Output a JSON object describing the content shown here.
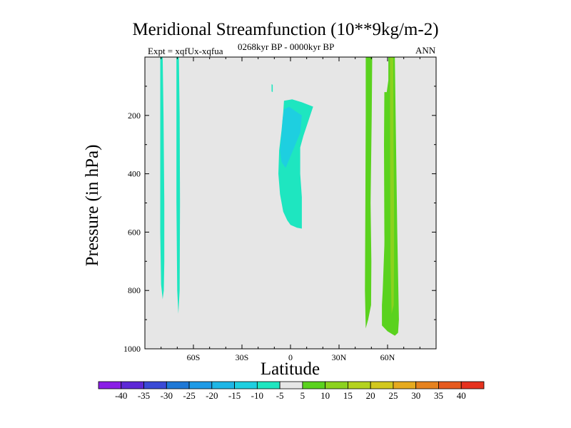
{
  "title": "Meridional Streamfunction (10**9kg/m-2)",
  "subtitle_left": "Expt = xqfUx-xqfua",
  "subtitle_center": "0268kyr BP - 0000kyr BP",
  "subtitle_right": "ANN",
  "chart_data": {
    "type": "heatmap",
    "title": "Meridional Streamfunction (10**9kg/m-2)",
    "xlabel": "Latitude",
    "ylabel": "Pressure (in hPa)",
    "xlim": [
      -90,
      90
    ],
    "ylim": [
      1000,
      0
    ],
    "x_ticks": [
      -60,
      -30,
      0,
      30,
      60
    ],
    "x_tick_labels": [
      "60S",
      "30S",
      "0",
      "30N",
      "60N"
    ],
    "y_ticks": [
      200,
      400,
      600,
      800,
      1000
    ],
    "y_tick_labels": [
      "200",
      "400",
      "600",
      "800",
      "1000"
    ],
    "background": "#e6e6e6",
    "colorbar": {
      "labels": [
        "-40",
        "-35",
        "-30",
        "-25",
        "-20",
        "-15",
        "-10",
        "-5",
        "5",
        "10",
        "15",
        "20",
        "25",
        "30",
        "35",
        "40"
      ],
      "colors": [
        "#8a1ee6",
        "#5d28d6",
        "#3a4ad6",
        "#1e78d6",
        "#1e9ae6",
        "#1eb6e6",
        "#1ecfe0",
        "#1ee6c0",
        "#e6e6e6",
        "#5ad21e",
        "#8cd21e",
        "#b4d21e",
        "#d2c81e",
        "#e6aa1e",
        "#e6821e",
        "#e65a1e",
        "#e6321e"
      ]
    },
    "regions": [
      {
        "name": "sh-high-lat-cell-1",
        "level": -5,
        "color": "#1ee6c0",
        "points": [
          [
            -80.5,
            0
          ],
          [
            -79.0,
            0
          ],
          [
            -78.5,
            200
          ],
          [
            -78.0,
            500
          ],
          [
            -78.0,
            700
          ],
          [
            -78.3,
            800
          ],
          [
            -79.0,
            830
          ],
          [
            -80.0,
            780
          ],
          [
            -80.5,
            600
          ],
          [
            -80.5,
            300
          ]
        ]
      },
      {
        "name": "sh-high-lat-cell-2",
        "level": -5,
        "color": "#1ee6c0",
        "points": [
          [
            -70.5,
            0
          ],
          [
            -69.0,
            0
          ],
          [
            -68.5,
            200
          ],
          [
            -68.3,
            500
          ],
          [
            -68.5,
            800
          ],
          [
            -69.3,
            880
          ],
          [
            -70.0,
            800
          ],
          [
            -70.5,
            500
          ]
        ]
      },
      {
        "name": "tropical-cell-outer",
        "level": -5,
        "color": "#1ee6c0",
        "points": [
          [
            -4,
            150
          ],
          [
            1,
            145
          ],
          [
            7,
            155
          ],
          [
            14,
            170
          ],
          [
            11,
            220
          ],
          [
            8,
            270
          ],
          [
            6,
            310
          ],
          [
            6,
            400
          ],
          [
            7,
            480
          ],
          [
            7,
            588
          ],
          [
            4,
            585
          ],
          [
            0,
            575
          ],
          [
            -2,
            560
          ],
          [
            -4.5,
            530
          ],
          [
            -6.5,
            470
          ],
          [
            -7.5,
            400
          ],
          [
            -7,
            320
          ],
          [
            -5.5,
            250
          ],
          [
            -4.5,
            190
          ]
        ]
      },
      {
        "name": "tropical-cell-core",
        "level": -10,
        "color": "#1ecfe0",
        "points": [
          [
            -4,
            180
          ],
          [
            -1,
            170
          ],
          [
            3,
            185
          ],
          [
            7,
            200
          ],
          [
            6,
            260
          ],
          [
            3,
            300
          ],
          [
            0,
            340
          ],
          [
            -3,
            380
          ],
          [
            -5.5,
            360
          ],
          [
            -6.5,
            320
          ],
          [
            -5.5,
            260
          ],
          [
            -4.8,
            210
          ]
        ]
      },
      {
        "name": "small-patch",
        "level": -5,
        "color": "#1ee6c0",
        "points": [
          [
            -11.7,
            93
          ],
          [
            -11.0,
            95
          ],
          [
            -11.0,
            120
          ],
          [
            -11.7,
            118
          ]
        ]
      },
      {
        "name": "nh-cell-1",
        "level": 5,
        "color": "#5ad21e",
        "points": [
          [
            46.5,
            0
          ],
          [
            50.5,
            0
          ],
          [
            50.2,
            200
          ],
          [
            49.5,
            500
          ],
          [
            50.0,
            700
          ],
          [
            49.8,
            850
          ],
          [
            48.0,
            900
          ],
          [
            46.5,
            930
          ],
          [
            46.0,
            800
          ],
          [
            46.3,
            500
          ],
          [
            46.5,
            200
          ]
        ]
      },
      {
        "name": "nh-cell-2",
        "level": 5,
        "color": "#5ad21e",
        "points": [
          [
            60.5,
            0
          ],
          [
            64.5,
            0
          ],
          [
            65.0,
            200
          ],
          [
            66.0,
            600
          ],
          [
            67.0,
            900
          ],
          [
            66.5,
            945
          ],
          [
            64.5,
            955
          ],
          [
            60.0,
            940
          ],
          [
            56.5,
            920
          ],
          [
            56.5,
            850
          ],
          [
            57.0,
            800
          ],
          [
            60.0,
            350
          ],
          [
            59.0,
            140
          ],
          [
            60.5,
            80
          ]
        ]
      },
      {
        "name": "nh-cell-3",
        "level": 10,
        "color": "#8cd21e",
        "points": [
          [
            61.5,
            0
          ],
          [
            63.5,
            0
          ],
          [
            63.7,
            300
          ],
          [
            64.0,
            500
          ],
          [
            64.0,
            700
          ],
          [
            63.8,
            850
          ],
          [
            62.5,
            880
          ],
          [
            61.8,
            700
          ],
          [
            61.6,
            400
          ]
        ]
      },
      {
        "name": "nh-cell-4",
        "level": 5,
        "color": "#5ad21e",
        "points": [
          [
            58.0,
            120
          ],
          [
            61.0,
            120
          ],
          [
            61.5,
            500
          ],
          [
            61.5,
            700
          ],
          [
            60.0,
            830
          ],
          [
            58.5,
            810
          ],
          [
            58.0,
            600
          ],
          [
            57.8,
            300
          ]
        ]
      }
    ]
  }
}
